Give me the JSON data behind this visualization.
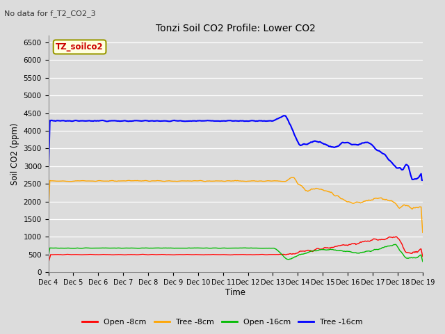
{
  "title": "Tonzi Soil CO2 Profile: Lower CO2",
  "subtitle": "No data for f_T2_CO2_3",
  "ylabel": "Soil CO2 (ppm)",
  "xlabel": "Time",
  "legend_label": "TZ_soilco2",
  "ylim": [
    0,
    6700
  ],
  "yticks": [
    0,
    500,
    1000,
    1500,
    2000,
    2500,
    3000,
    3500,
    4000,
    4500,
    5000,
    5500,
    6000,
    6500
  ],
  "xtick_labels": [
    "Dec 4",
    "Dec 5",
    "Dec 6",
    "Dec 7",
    "Dec 8",
    "Dec 9",
    "Dec 10",
    "Dec 11",
    "Dec 12",
    "Dec 13",
    "Dec 14",
    "Dec 15",
    "Dec 16",
    "Dec 17",
    "Dec 18",
    "Dec 19"
  ],
  "bg_color": "#dcdcdc",
  "plot_bg_color": "#dcdcdc",
  "legend_entries": [
    "Open -8cm",
    "Tree -8cm",
    "Open -16cm",
    "Tree -16cm"
  ],
  "legend_colors": [
    "#ff0000",
    "#ffa500",
    "#00bb00",
    "#0000ff"
  ],
  "series_colors": {
    "open8": "#ff0000",
    "tree8": "#ffa500",
    "open16": "#00bb00",
    "tree16": "#0000ff"
  },
  "num_points": 500
}
